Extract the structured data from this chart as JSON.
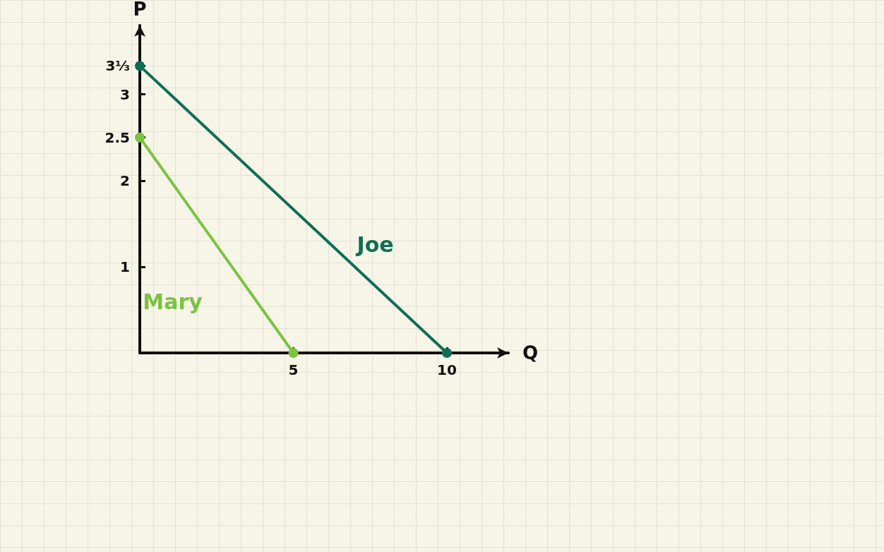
{
  "chart_data": {
    "type": "line",
    "xlabel": "Q",
    "ylabel": "P",
    "series": [
      {
        "name": "Joe",
        "color": "#0e6e55",
        "x": [
          0,
          10
        ],
        "values": [
          3.33,
          0
        ]
      },
      {
        "name": "Mary",
        "color": "#7cc242",
        "x": [
          0,
          5
        ],
        "values": [
          2.5,
          0
        ]
      }
    ],
    "xlim": [
      0,
      12
    ],
    "ylim": [
      0,
      3.8
    ],
    "xticks": [
      5,
      10
    ],
    "yticks": [
      1,
      2,
      2.5,
      3,
      {
        "value": 3.33,
        "label": "3⅓"
      }
    ],
    "grid": false,
    "legend": false,
    "marker": "circle",
    "line_style": "solid"
  }
}
